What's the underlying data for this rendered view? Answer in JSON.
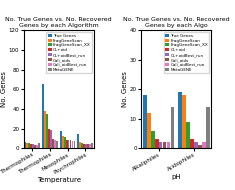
{
  "chart_data": [
    {
      "type": "bar",
      "title": "No. True Genes vs. No. Recovered Genes by each Algorithm",
      "xlabel": "Temperature",
      "ylabel": "No. Genes",
      "categories": [
        "Thermophiles",
        "Thermophiles",
        "Mesophiles",
        "Psychrophiles"
      ],
      "series": [
        {
          "name": "True Genes",
          "values": [
            6,
            65,
            18,
            14
          ]
        },
        {
          "name": "FragGeneScan",
          "values": [
            5,
            38,
            12,
            6
          ]
        },
        {
          "name": "FragGeneScan_XX",
          "values": [
            5,
            35,
            11,
            5
          ]
        },
        {
          "name": "CL+oid",
          "values": [
            4,
            20,
            8,
            4
          ]
        },
        {
          "name": "CL+oidBest_run",
          "values": [
            4,
            19,
            8,
            4
          ]
        },
        {
          "name": "Cali_oids",
          "values": [
            3,
            9,
            8,
            4
          ]
        },
        {
          "name": "Cali_oidBest_run",
          "values": [
            3,
            8,
            7,
            4
          ]
        },
        {
          "name": "MetaGENE",
          "values": [
            5,
            7,
            7,
            5
          ]
        }
      ],
      "ylim": [
        0,
        120
      ],
      "yticks": [
        0,
        20,
        40,
        60,
        80,
        100,
        120
      ],
      "legend": "upper right"
    },
    {
      "type": "bar",
      "title": "No. True Genes vs. No. Recovered Genes by each Algo",
      "xlabel": "pH",
      "ylabel": "No. Genes",
      "categories": [
        "Alkaliphiles",
        "Acidophiles"
      ],
      "series": [
        {
          "name": "True Genes",
          "values": [
            18,
            19
          ]
        },
        {
          "name": "FragGeneScan",
          "values": [
            12,
            18
          ]
        },
        {
          "name": "FragGeneScan_XX",
          "values": [
            6,
            9
          ]
        },
        {
          "name": "CL+oid",
          "values": [
            3,
            3
          ]
        },
        {
          "name": "CL+oidBest_run",
          "values": [
            2,
            2
          ]
        },
        {
          "name": "Cali_oids",
          "values": [
            2,
            1
          ]
        },
        {
          "name": "Cali_oidBest_run",
          "values": [
            2,
            2
          ]
        },
        {
          "name": "MetaGENE",
          "values": [
            14,
            14
          ]
        }
      ],
      "ylim": [
        0,
        40
      ],
      "yticks": [
        0,
        10,
        20,
        30,
        40
      ],
      "legend": "upper right"
    }
  ]
}
